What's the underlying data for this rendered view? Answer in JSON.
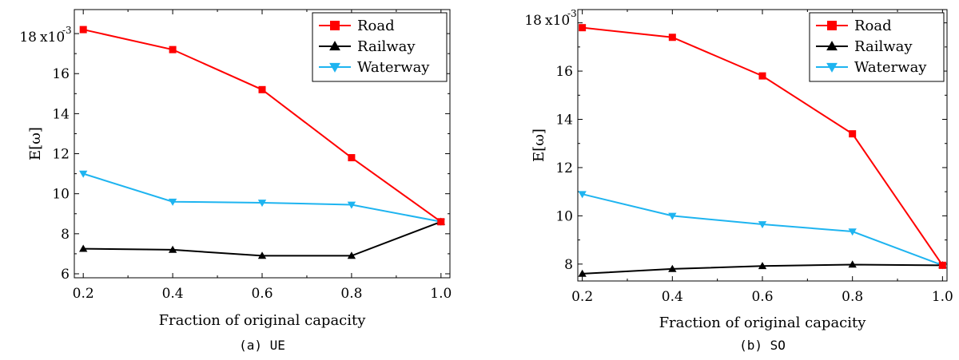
{
  "chart_data": [
    {
      "type": "line",
      "caption": "(a) UE",
      "xlabel": "Fraction of original capacity",
      "ylabel": "E[ω]",
      "y_multiplier": "x10",
      "y_multiplier_exp": "-3",
      "x": [
        0.2,
        0.4,
        0.6,
        0.8,
        1.0
      ],
      "x_tick_labels": [
        "0.2",
        "0.4",
        "0.6",
        "0.8",
        "1.0"
      ],
      "y_ticks": [
        6,
        8,
        10,
        12,
        14,
        16,
        18
      ],
      "y_tick_labels": [
        "6",
        "8",
        "10",
        "12",
        "14",
        "16",
        "18"
      ],
      "xlim": [
        0.18,
        1.02
      ],
      "ylim": [
        5.8,
        19.2
      ],
      "legend_position": "top-right",
      "grid": false,
      "series": [
        {
          "name": "Road",
          "color": "#ff0000",
          "marker": "square",
          "values": [
            18.2,
            17.2,
            15.2,
            11.8,
            8.6
          ]
        },
        {
          "name": "Railway",
          "color": "#000000",
          "marker": "triangle-up",
          "values": [
            7.25,
            7.2,
            6.9,
            6.9,
            8.6
          ]
        },
        {
          "name": "Waterway",
          "color": "#1eb4f0",
          "marker": "triangle-down",
          "values": [
            11.0,
            9.6,
            9.55,
            9.45,
            8.6
          ]
        }
      ]
    },
    {
      "type": "line",
      "caption": "(b) SO",
      "xlabel": "Fraction of original capacity",
      "ylabel": "E[ω]",
      "y_multiplier": "x10",
      "y_multiplier_exp": "-3",
      "x": [
        0.2,
        0.4,
        0.6,
        0.8,
        1.0
      ],
      "x_tick_labels": [
        "0.2",
        "0.4",
        "0.6",
        "0.8",
        "1.0"
      ],
      "y_ticks": [
        8,
        10,
        12,
        14,
        16,
        18
      ],
      "y_tick_labels": [
        "8",
        "10",
        "12",
        "14",
        "16",
        "18"
      ],
      "xlim": [
        0.19,
        1.01
      ],
      "ylim": [
        7.3,
        18.55
      ],
      "legend_position": "top-right",
      "grid": false,
      "series": [
        {
          "name": "Road",
          "color": "#ff0000",
          "marker": "square",
          "values": [
            17.8,
            17.4,
            15.8,
            13.4,
            7.95
          ]
        },
        {
          "name": "Railway",
          "color": "#000000",
          "marker": "triangle-up",
          "values": [
            7.6,
            7.8,
            7.92,
            7.98,
            7.95
          ]
        },
        {
          "name": "Waterway",
          "color": "#1eb4f0",
          "marker": "triangle-down",
          "values": [
            10.9,
            10.0,
            9.65,
            9.35,
            7.95
          ]
        }
      ]
    }
  ]
}
